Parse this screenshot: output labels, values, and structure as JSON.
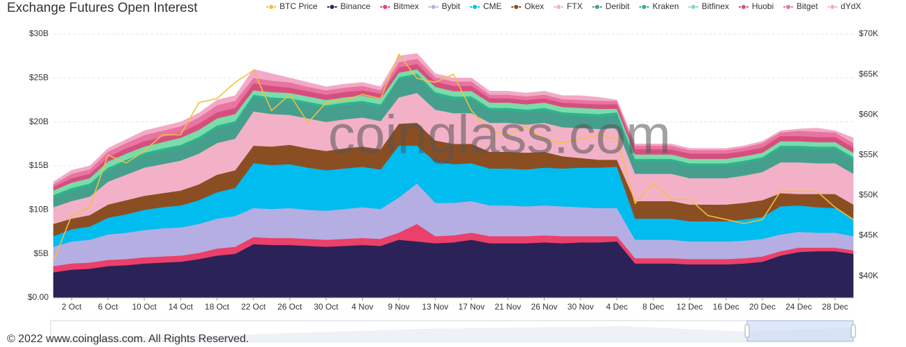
{
  "chart_data": {
    "type": "area",
    "stacked": true,
    "title": "Exchange  Futures Open Interest",
    "watermark": "coinglass.com",
    "categories": [
      null,
      "2 Oct",
      null,
      "6 Oct",
      null,
      "10 Oct",
      null,
      "14 Oct",
      null,
      "18 Oct",
      null,
      "22 Oct",
      null,
      "26 Oct",
      null,
      "30 Oct",
      null,
      "4 Nov",
      null,
      "9 Nov",
      null,
      "13 Nov",
      null,
      "17 Nov",
      null,
      "21 Nov",
      null,
      "26 Nov",
      null,
      "30 Nov",
      null,
      "4 Dec",
      null,
      "8 Dec",
      null,
      "12 Dec",
      null,
      "16 Dec",
      null,
      "20 Dec",
      null,
      "24 Dec",
      null,
      "28 Dec",
      null
    ],
    "ylim": [
      0,
      30
    ],
    "yticks": [
      {
        "value": 0,
        "label": "$0.00"
      },
      {
        "value": 5,
        "label": "$5B"
      },
      {
        "value": 10,
        "label": "$10B"
      },
      {
        "value": 15,
        "label": "$15B"
      },
      {
        "value": 20,
        "label": "$20B"
      },
      {
        "value": 25,
        "label": "$25B"
      },
      {
        "value": 30,
        "label": "$30B"
      }
    ],
    "y2lim": [
      37300,
      70000
    ],
    "y2ticks": [
      {
        "value": 40000,
        "label": "$40K"
      },
      {
        "value": 45000,
        "label": "$45K"
      },
      {
        "value": 50000,
        "label": "$50K"
      },
      {
        "value": 55000,
        "label": "$55K"
      },
      {
        "value": 60000,
        "label": "$60K"
      },
      {
        "value": 65000,
        "label": "$65K"
      },
      {
        "value": 70000,
        "label": "$70K"
      }
    ],
    "grid": true,
    "legend": "top",
    "series": [
      {
        "name": "BTC Price",
        "color": "#f0c040",
        "axis": "y2",
        "type": "line",
        "values": [
          41800,
          47500,
          48500,
          55000,
          54000,
          55500,
          57500,
          57500,
          61500,
          62000,
          64000,
          65500,
          60500,
          62500,
          59000,
          61500,
          61800,
          62500,
          62000,
          67500,
          64500,
          64000,
          65000,
          60500,
          58000,
          57500,
          58500,
          57000,
          56500,
          57000,
          57500,
          57000,
          49000,
          51500,
          49500,
          49500,
          47500,
          47000,
          46500,
          47000,
          50500,
          50500,
          50500,
          48500,
          47000
        ]
      },
      {
        "name": "Binance",
        "color": "#2b2257",
        "values": [
          2.9,
          3.2,
          3.3,
          3.6,
          3.7,
          3.9,
          4.0,
          4.1,
          4.4,
          4.8,
          5.0,
          6.1,
          6.0,
          6.0,
          5.9,
          5.8,
          5.9,
          6.0,
          5.9,
          6.6,
          6.4,
          6.2,
          6.3,
          6.6,
          6.2,
          6.2,
          6.2,
          6.3,
          6.2,
          6.3,
          6.3,
          6.4,
          3.9,
          3.9,
          3.9,
          3.8,
          3.8,
          3.8,
          3.9,
          4.1,
          4.8,
          5.2,
          5.3,
          5.3,
          5.0
        ]
      },
      {
        "name": "Bitmex",
        "color": "#ea4069",
        "values": [
          0.7,
          0.7,
          0.7,
          0.7,
          0.7,
          0.7,
          0.7,
          0.7,
          0.7,
          0.8,
          0.8,
          0.8,
          0.8,
          0.8,
          0.8,
          0.8,
          0.8,
          0.8,
          0.8,
          0.8,
          2.0,
          0.8,
          0.8,
          0.8,
          0.8,
          0.8,
          0.8,
          0.8,
          0.8,
          0.7,
          0.7,
          0.6,
          0.6,
          0.6,
          0.6,
          0.6,
          0.6,
          0.6,
          0.6,
          0.6,
          0.5,
          0.5,
          0.4,
          0.4,
          0.4
        ]
      },
      {
        "name": "Bybit",
        "color": "#b5aee2",
        "values": [
          2.2,
          2.5,
          2.6,
          2.9,
          3.0,
          3.1,
          3.2,
          3.2,
          3.3,
          3.4,
          3.5,
          3.3,
          3.3,
          3.4,
          3.3,
          3.3,
          3.4,
          3.5,
          3.4,
          4.0,
          4.6,
          3.8,
          3.7,
          3.6,
          3.5,
          3.5,
          3.4,
          3.4,
          3.4,
          3.3,
          3.2,
          3.2,
          2.1,
          2.1,
          2.1,
          2.0,
          2.0,
          2.0,
          2.0,
          2.0,
          1.9,
          1.8,
          1.7,
          1.7,
          1.6
        ]
      },
      {
        "name": "CME",
        "color": "#00bcef",
        "values": [
          1.2,
          1.4,
          1.5,
          1.9,
          2.1,
          2.3,
          2.4,
          2.5,
          2.7,
          3.0,
          3.2,
          5.1,
          5.0,
          5.0,
          4.8,
          4.6,
          4.6,
          4.6,
          4.5,
          5.9,
          4.3,
          4.7,
          4.4,
          4.3,
          4.2,
          4.2,
          4.2,
          4.3,
          4.3,
          4.5,
          4.6,
          4.7,
          2.4,
          2.4,
          2.4,
          2.3,
          2.3,
          2.3,
          2.4,
          2.5,
          3.2,
          3.0,
          2.9,
          2.8,
          2.0
        ]
      },
      {
        "name": "Okex",
        "color": "#8b4e22",
        "values": [
          1.4,
          1.2,
          1.3,
          1.5,
          1.6,
          1.6,
          1.6,
          1.7,
          1.8,
          2.0,
          2.0,
          2.0,
          2.1,
          2.2,
          2.2,
          2.2,
          2.3,
          2.3,
          2.3,
          2.5,
          2.6,
          2.4,
          2.3,
          2.2,
          1.9,
          1.9,
          1.9,
          1.8,
          1.4,
          1.1,
          0.9,
          0.8,
          2.0,
          2.0,
          2.0,
          1.9,
          1.9,
          1.9,
          1.9,
          1.9,
          1.5,
          1.3,
          1.5,
          1.6,
          1.6
        ]
      },
      {
        "name": "FTX",
        "color": "#f3b1c8",
        "values": [
          1.9,
          2.0,
          2.1,
          2.6,
          2.9,
          3.2,
          3.3,
          3.4,
          3.5,
          3.6,
          3.6,
          3.9,
          3.7,
          3.4,
          3.4,
          3.3,
          3.3,
          3.3,
          3.2,
          3.0,
          3.4,
          3.5,
          3.5,
          3.5,
          3.3,
          3.3,
          3.2,
          3.3,
          3.3,
          3.4,
          3.5,
          3.6,
          3.1,
          3.1,
          3.1,
          3.0,
          3.0,
          3.0,
          3.1,
          3.2,
          3.5,
          3.6,
          3.5,
          3.5,
          3.5
        ]
      },
      {
        "name": "Deribit",
        "color": "#469f8c",
        "values": [
          1.1,
          1.2,
          1.2,
          1.3,
          1.4,
          1.4,
          1.5,
          1.5,
          1.6,
          1.7,
          1.7,
          1.6,
          1.6,
          1.6,
          1.6,
          1.6,
          1.6,
          1.6,
          1.6,
          2.0,
          1.9,
          1.7,
          1.6,
          1.6,
          1.4,
          1.4,
          1.4,
          1.4,
          1.4,
          1.4,
          1.4,
          1.5,
          1.4,
          1.4,
          1.4,
          1.4,
          1.4,
          1.4,
          1.4,
          1.4,
          1.6,
          1.6,
          1.6,
          1.6,
          1.6
        ]
      },
      {
        "name": "Kraken",
        "color": "#2db48f",
        "values": [
          0.3,
          0.3,
          0.3,
          0.3,
          0.3,
          0.3,
          0.3,
          0.3,
          0.3,
          0.3,
          0.3,
          0.3,
          0.3,
          0.3,
          0.3,
          0.3,
          0.3,
          0.3,
          0.3,
          0.3,
          0.3,
          0.3,
          0.3,
          0.3,
          0.3,
          0.3,
          0.3,
          0.3,
          0.3,
          0.3,
          0.3,
          0.3,
          0.3,
          0.3,
          0.3,
          0.3,
          0.3,
          0.3,
          0.3,
          0.3,
          0.3,
          0.3,
          0.3,
          0.3,
          0.3
        ]
      },
      {
        "name": "Bitfinex",
        "color": "#7adca9",
        "values": [
          0.5,
          0.6,
          0.6,
          0.7,
          0.7,
          0.7,
          0.7,
          0.8,
          0.8,
          0.8,
          0.8,
          0.5,
          0.6,
          0.6,
          0.6,
          0.6,
          0.6,
          0.6,
          0.6,
          0.5,
          0.5,
          0.6,
          0.6,
          0.6,
          0.6,
          0.6,
          0.6,
          0.6,
          0.6,
          0.6,
          0.6,
          0.4,
          0.5,
          0.5,
          0.5,
          0.5,
          0.5,
          0.5,
          0.5,
          0.5,
          0.5,
          0.5,
          0.5,
          0.5,
          0.5
        ]
      },
      {
        "name": "Huobi",
        "color": "#d54f7e",
        "values": [
          0.4,
          0.5,
          0.5,
          0.5,
          0.6,
          0.6,
          0.6,
          0.6,
          0.7,
          0.7,
          0.7,
          0.8,
          0.7,
          0.6,
          0.6,
          0.6,
          0.6,
          0.6,
          0.6,
          0.6,
          0.6,
          0.6,
          0.6,
          0.6,
          0.5,
          0.5,
          0.5,
          0.5,
          0.5,
          0.5,
          0.5,
          0.5,
          0.6,
          0.6,
          0.6,
          0.6,
          0.6,
          0.6,
          0.6,
          0.6,
          0.6,
          0.6,
          0.6,
          0.6,
          0.6
        ]
      },
      {
        "name": "Bitget",
        "color": "#e8749f",
        "values": [
          0.3,
          0.5,
          0.5,
          0.6,
          0.6,
          0.7,
          0.7,
          0.7,
          0.7,
          0.8,
          0.8,
          0.6,
          0.6,
          0.6,
          0.5,
          0.5,
          0.5,
          0.5,
          0.4,
          0.6,
          0.6,
          0.5,
          0.5,
          0.5,
          0.4,
          0.4,
          0.4,
          0.4,
          0.4,
          0.4,
          0.4,
          0.4,
          0.4,
          0.4,
          0.4,
          0.4,
          0.4,
          0.4,
          0.4,
          0.5,
          0.4,
          0.6,
          0.6,
          0.5,
          0.5
        ]
      },
      {
        "name": "dYdX",
        "color": "#f3a9c7",
        "values": [
          0.3,
          0.4,
          0.4,
          0.4,
          0.4,
          0.5,
          0.5,
          0.5,
          0.5,
          0.6,
          0.6,
          1.0,
          0.8,
          0.5,
          0.5,
          0.4,
          0.4,
          0.4,
          0.4,
          0.7,
          0.6,
          0.4,
          0.4,
          0.4,
          0.4,
          0.4,
          0.4,
          0.4,
          0.4,
          0.5,
          0.4,
          0.1,
          0.2,
          0.2,
          0.2,
          0.2,
          0.2,
          0.2,
          0.2,
          0.2,
          0.2,
          0.2,
          0.4,
          0.2,
          0.6
        ]
      }
    ]
  },
  "footer": "© 2022 www.coinglass.com. All Rights Reserved."
}
